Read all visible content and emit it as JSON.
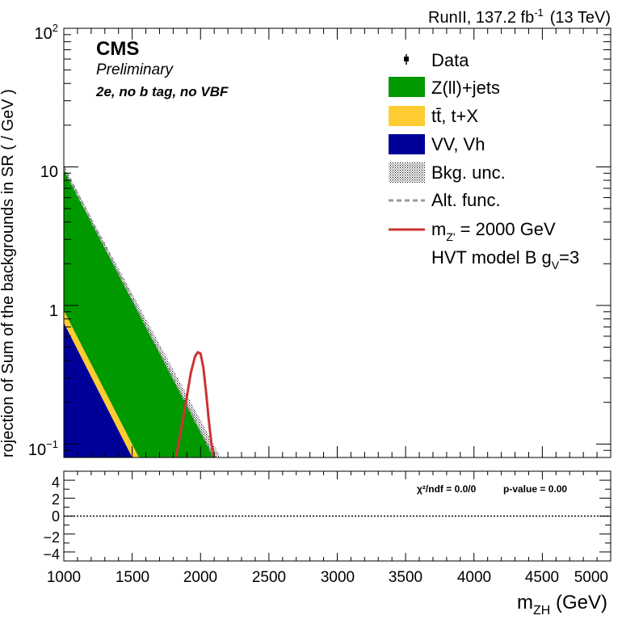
{
  "header": {
    "lumi_label": "RunII, 137.2 fb",
    "lumi_sup": "-1",
    "energy": "(13 TeV)"
  },
  "cms": {
    "logo": "CMS",
    "status": "Preliminary",
    "category": "2e, no b tag, no VBF"
  },
  "colors": {
    "zjets": "#009900",
    "ttbar": "#FFCC33",
    "vv": "#000099",
    "signal": "#CC3333",
    "alt_func": "#999999"
  },
  "legend": [
    {
      "key": "data",
      "text": "Data"
    },
    {
      "key": "zjets",
      "text": "Z(ll)+jets"
    },
    {
      "key": "ttbar",
      "text": "tt̄, t+X"
    },
    {
      "key": "vv",
      "text": "VV, Vh"
    },
    {
      "key": "unc",
      "text": "Bkg. unc."
    },
    {
      "key": "alt",
      "text": "Alt. func."
    },
    {
      "key": "signal",
      "text": "m",
      "sub": "Z'",
      "rest": " = 2000 GeV"
    },
    {
      "key": "model",
      "text": "HVT model B g",
      "sub": "V",
      "rest": "=3"
    }
  ],
  "ratio": {
    "chi2": "χ²/ndf = 0.0/0",
    "pvalue": "p-value = 0.00",
    "ytick_labels": [
      "4",
      "2",
      "0",
      "−2",
      "−4"
    ]
  },
  "chart_data": {
    "type": "area",
    "title": "",
    "xlabel": "m",
    "xlabel_sub": "ZH",
    "xlabel_unit": " (GeV)",
    "ylabel": "rojection of Sum of the backgrounds in SR ( / GeV )",
    "xlim": [
      1000,
      5000
    ],
    "ylim": [
      0.08,
      100
    ],
    "yscale": "log",
    "xtick_labels": [
      "1000",
      "1500",
      "2000",
      "2500",
      "3000",
      "3500",
      "4000",
      "4500",
      "5000"
    ],
    "ytick_labels": [
      {
        "base": "10",
        "exp": "2"
      },
      {
        "base": "10",
        "exp": ""
      },
      {
        "base": "1",
        "exp": ""
      },
      {
        "base": "10",
        "exp": "−1"
      }
    ],
    "stack": [
      {
        "name": "VV, Vh",
        "x": [
          1000,
          1500
        ],
        "y": [
          0.75,
          0.08
        ]
      },
      {
        "name": "tt̄, t+X",
        "x": [
          1000,
          1550
        ],
        "y": [
          0.92,
          0.08
        ]
      },
      {
        "name": "Z(ll)+jets",
        "x": [
          1000,
          2100
        ],
        "y": [
          9.5,
          0.08
        ]
      }
    ],
    "alt_func": {
      "x": [
        1000,
        2100
      ],
      "y": [
        10.0,
        0.08
      ]
    },
    "signal": {
      "name": "m_Z' = 2000 GeV",
      "x": [
        1820,
        1860,
        1900,
        1930,
        1960,
        1980,
        2000,
        2020,
        2040,
        2060,
        2080,
        2100
      ],
      "y": [
        0.08,
        0.13,
        0.22,
        0.33,
        0.43,
        0.46,
        0.45,
        0.36,
        0.24,
        0.15,
        0.1,
        0.08
      ]
    },
    "ratio_ylim": [
      -5,
      5
    ],
    "ratio_yticks": [
      4,
      2,
      0,
      -2,
      -4
    ],
    "ratio_reference": 0
  }
}
